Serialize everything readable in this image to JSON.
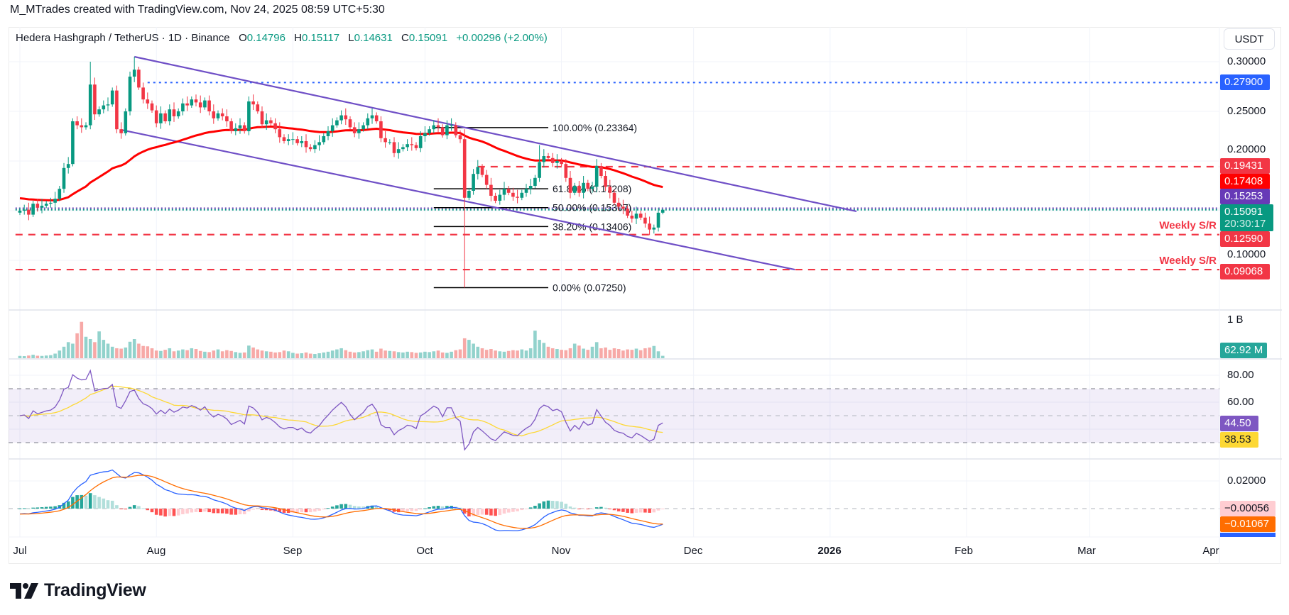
{
  "header": {
    "attribution": "M_MTrades created with TradingView.com, Nov 24, 2025 08:59 UTC+5:30"
  },
  "legend": {
    "symbol": "Hedera Hashgraph / TetherUS · 1D · Binance",
    "o_label": "O",
    "o": "0.14796",
    "h_label": "H",
    "h": "0.15117",
    "l_label": "L",
    "l": "0.14631",
    "c_label": "C",
    "c": "0.15091",
    "change": "+0.00296 (+2.00%)"
  },
  "currency_button": "USDT",
  "price_axis": {
    "ticks": [
      "0.30000",
      "0.25000",
      "0.20000",
      "0.10000"
    ],
    "tags": {
      "level_blue": "0.27900",
      "level_red_top": "0.19431",
      "ma": "0.17408",
      "avg_price": "0.15253",
      "last_price": "0.15091",
      "countdown": "20:30:17",
      "weekly_sr_1": "0.12590",
      "weekly_sr_2": "0.09068"
    }
  },
  "volume_axis": {
    "tick": "1 B",
    "last": "62.92 M"
  },
  "rsi_axis": {
    "ticks": [
      "80.00",
      "60.00"
    ],
    "rsi": "44.50",
    "rsi_ma": "38.53"
  },
  "macd_axis": {
    "tick": "0.02000",
    "histogram": "−0.00056",
    "signal": "−0.01067"
  },
  "time_axis": [
    "Jul",
    "Aug",
    "Sep",
    "Oct",
    "Nov",
    "Dec",
    "2026",
    "Feb",
    "Mar",
    "Apr"
  ],
  "brand": {
    "logo_text": "TradingView"
  },
  "colors": {
    "up": "#089981",
    "down": "#f23645",
    "ma": "#ff0000",
    "channel": "#6f4fc6",
    "blue": "#2962ff",
    "rsi": "#7e57c2",
    "rsi_ma": "#fdd835",
    "macd": "#2962ff",
    "signal": "#ff6d00"
  },
  "chart_data": {
    "type": "candlestick",
    "title": "Hedera Hashgraph / TetherUS · 1D · Binance",
    "y_scale": "linear",
    "ylim": [
      0.06,
      0.32
    ],
    "xlim": [
      "2025-06-30",
      "2026-04-01"
    ],
    "grid": true,
    "candles": {
      "start": "2025-07-01",
      "first_open": 0.148,
      "close": [
        0.15,
        0.151,
        0.146,
        0.157,
        0.153,
        0.155,
        0.157,
        0.158,
        0.162,
        0.172,
        0.193,
        0.197,
        0.24,
        0.236,
        0.234,
        0.236,
        0.277,
        0.247,
        0.252,
        0.256,
        0.257,
        0.271,
        0.232,
        0.228,
        0.25,
        0.285,
        0.292,
        0.274,
        0.262,
        0.258,
        0.251,
        0.238,
        0.248,
        0.24,
        0.252,
        0.245,
        0.25,
        0.258,
        0.256,
        0.262,
        0.259,
        0.254,
        0.261,
        0.25,
        0.243,
        0.248,
        0.245,
        0.24,
        0.23,
        0.233,
        0.236,
        0.23,
        0.26,
        0.257,
        0.25,
        0.237,
        0.241,
        0.238,
        0.232,
        0.224,
        0.22,
        0.222,
        0.222,
        0.218,
        0.22,
        0.214,
        0.212,
        0.216,
        0.219,
        0.225,
        0.23,
        0.236,
        0.241,
        0.246,
        0.242,
        0.234,
        0.228,
        0.232,
        0.236,
        0.243,
        0.246,
        0.24,
        0.223,
        0.219,
        0.219,
        0.208,
        0.212,
        0.214,
        0.217,
        0.216,
        0.213,
        0.225,
        0.228,
        0.232,
        0.236,
        0.234,
        0.226,
        0.236,
        0.236,
        0.226,
        0.222,
        0.163,
        0.17,
        0.187,
        0.194,
        0.186,
        0.176,
        0.165,
        0.16,
        0.166,
        0.172,
        0.168,
        0.164,
        0.163,
        0.168,
        0.172,
        0.175,
        0.183,
        0.199,
        0.205,
        0.203,
        0.198,
        0.2,
        0.197,
        0.183,
        0.168,
        0.175,
        0.168,
        0.178,
        0.172,
        0.174,
        0.195,
        0.185,
        0.174,
        0.168,
        0.158,
        0.154,
        0.152,
        0.145,
        0.142,
        0.147,
        0.143,
        0.137,
        0.131,
        0.133,
        0.14796,
        0.15091
      ],
      "extremes": [
        {
          "date": "2025-07-27",
          "high": 0.305
        },
        {
          "date": "2025-07-17",
          "high": 0.3
        },
        {
          "date": "2025-10-10",
          "high": 0.232,
          "low": 0.0725
        },
        {
          "date": "2025-10-27",
          "high": 0.216
        },
        {
          "date": "2025-11-22",
          "low": 0.127
        },
        {
          "date": "2025-11-24",
          "open": 0.14796,
          "high": 0.15117,
          "low": 0.14631,
          "close": 0.15091
        }
      ],
      "volume_millions": [
        60,
        55,
        70,
        90,
        65,
        60,
        70,
        80,
        120,
        200,
        300,
        420,
        380,
        650,
        950,
        560,
        500,
        420,
        700,
        480,
        380,
        300,
        260,
        250,
        280,
        430,
        500,
        380,
        320,
        310,
        260,
        200,
        190,
        220,
        260,
        180,
        200,
        230,
        210,
        260,
        240,
        190,
        170,
        160,
        200,
        230,
        180,
        210,
        190,
        160,
        140,
        150,
        330,
        280,
        230,
        200,
        180,
        170,
        150,
        160,
        200,
        180,
        140,
        120,
        130,
        150,
        120,
        110,
        130,
        150,
        170,
        200,
        230,
        260,
        210,
        170,
        150,
        160,
        180,
        210,
        230,
        170,
        250,
        200,
        190,
        180,
        160,
        150,
        170,
        160,
        140,
        150,
        170,
        160,
        180,
        200,
        150,
        140,
        170,
        210,
        230,
        520,
        480,
        380,
        300,
        260,
        220,
        240,
        200,
        180,
        170,
        190,
        210,
        200,
        230,
        200,
        260,
        720,
        480,
        400,
        300,
        260,
        240,
        220,
        210,
        260,
        380,
        330,
        250,
        220,
        300,
        420,
        260,
        280,
        220,
        260,
        240,
        200,
        230,
        220,
        250,
        210,
        260,
        280,
        320,
        180,
        62.92
      ]
    },
    "channel": {
      "upper": [
        {
          "date": "2025-07-27",
          "price": 0.305
        },
        {
          "date": "2026-01-07",
          "price": 0.1493
        }
      ],
      "lower": [
        {
          "date": "2025-07-24",
          "price": 0.2314
        },
        {
          "date": "2025-12-24",
          "price": 0.0907
        }
      ]
    },
    "fibonacci": {
      "from": "2025-10-03",
      "to": "2025-10-29",
      "levels": [
        {
          "price": 0.23364,
          "label": "100.00% (0.23364)"
        },
        {
          "price": 0.17208,
          "label": "61.80% (0.17208)"
        },
        {
          "price": 0.15307,
          "label": "50.00% (0.15307)"
        },
        {
          "price": 0.13406,
          "label": "38.20% (0.13406)"
        },
        {
          "price": 0.0725,
          "label": "0.00% (0.07250)"
        }
      ]
    },
    "horizontal_lines": [
      {
        "price": 0.279,
        "from": "2025-07-30",
        "style": "dotted",
        "color": "#2962ff"
      },
      {
        "price": 0.19431,
        "from": "2025-10-13",
        "style": "dashed",
        "color": "#f23645"
      },
      {
        "price": 0.1259,
        "from": "2025-06-30",
        "style": "dashed",
        "color": "#f23645",
        "label": "Weekly S/R"
      },
      {
        "price": 0.09068,
        "from": "2025-06-30",
        "style": "dashed",
        "color": "#f23645",
        "label": "Weekly S/R"
      },
      {
        "price": 0.15253,
        "from": "2025-06-30",
        "style": "dotted",
        "color": "#673ab7"
      },
      {
        "price": 0.15091,
        "from": "2025-06-30",
        "style": "dotted",
        "color": "#089981"
      }
    ],
    "rsi": {
      "levels": [
        70,
        50,
        30
      ],
      "ylim": [
        20,
        90
      ]
    },
    "macd": {
      "ylim": [
        -0.025,
        0.03
      ]
    }
  }
}
